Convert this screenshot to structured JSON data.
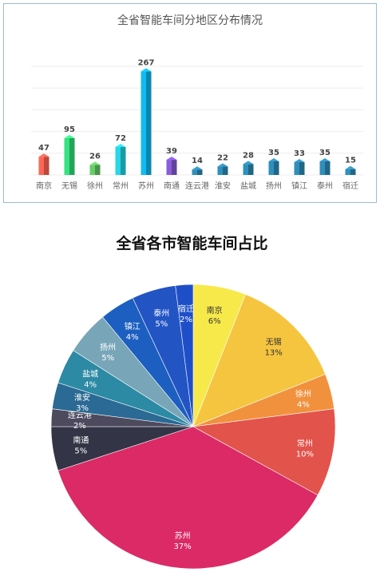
{
  "chart_data": [
    {
      "type": "bar",
      "title": "全省智能车间分地区分布情况",
      "categories": [
        "南京",
        "无锡",
        "徐州",
        "常州",
        "苏州",
        "南通",
        "连云港",
        "淮安",
        "盐城",
        "扬州",
        "镇江",
        "泰州",
        "宿迁"
      ],
      "values": [
        47,
        95,
        26,
        72,
        267,
        39,
        14,
        22,
        28,
        35,
        33,
        35,
        15
      ],
      "colors": [
        "#ec5a4a",
        "#2ecc71",
        "#5cb85c",
        "#22c1cf",
        "#0ea7da",
        "#7b52c4",
        "#2a80a8",
        "#2a80a8",
        "#2a80a8",
        "#2a80a8",
        "#2a80a8",
        "#2a80a8",
        "#2a80a8"
      ],
      "ylim": [
        0,
        280
      ],
      "grid": true,
      "xlabel": "",
      "ylabel": ""
    },
    {
      "type": "pie",
      "title": "全省各市智能车间占比",
      "labels": [
        "南京",
        "无锡",
        "徐州",
        "常州",
        "苏州",
        "南通",
        "连云港",
        "淮安",
        "盐城",
        "扬州",
        "镇江",
        "泰州",
        "宿迁"
      ],
      "values": [
        6,
        13,
        4,
        10,
        37,
        5,
        2,
        3,
        4,
        5,
        4,
        5,
        2
      ],
      "value_labels": [
        "6%",
        "13%",
        "4%",
        "10%",
        "37%",
        "5%",
        "2%",
        "3%",
        "4%",
        "5%",
        "4%",
        "5%",
        "2%"
      ],
      "colors": [
        "#f7e94a",
        "#f5c540",
        "#f2913d",
        "#e2534b",
        "#db2a66",
        "#343447",
        "#4e4a5e",
        "#2a6a94",
        "#2c8aa4",
        "#78a6b8",
        "#1c5fc0",
        "#2254c4",
        "#1f4fc8"
      ]
    }
  ]
}
